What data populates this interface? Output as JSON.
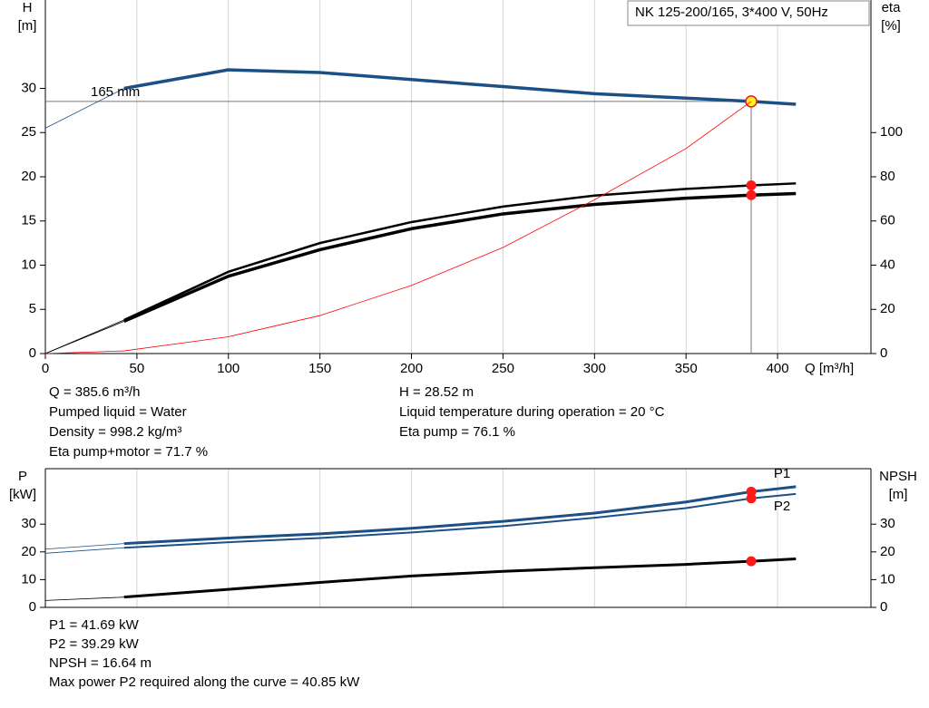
{
  "chart_data": [
    {
      "type": "line",
      "title": "NK 125-200/165, 3*400 V, 50Hz",
      "xlabel": "Q [m³/h]",
      "ylabel": [
        "H",
        "[m]"
      ],
      "y2label": [
        "eta",
        "[%]"
      ],
      "x": [
        0,
        43,
        100,
        150,
        200,
        250,
        300,
        350,
        385.6,
        410
      ],
      "xlim": [
        0,
        451
      ],
      "xticks": [
        0,
        50,
        100,
        150,
        200,
        250,
        300,
        350,
        400
      ],
      "ylim": [
        0,
        40
      ],
      "yticks": [
        0,
        5,
        10,
        15,
        20,
        25,
        30
      ],
      "y2lim": [
        0,
        160
      ],
      "y2ticks": [
        0,
        20,
        40,
        60,
        80,
        100
      ],
      "grid": true,
      "operating_point": {
        "x": 385.6,
        "y": 28.52
      },
      "series": [
        {
          "name": "165 mm",
          "color": "#1c4f86",
          "values": [
            25.5,
            30.0,
            32.1,
            31.8,
            31.0,
            30.2,
            29.4,
            28.9,
            28.52,
            28.2
          ]
        },
        {
          "color": "#000000",
          "axis": "y2",
          "values": [
            0,
            15.2,
            37,
            50,
            59.5,
            66.5,
            71.5,
            74.5,
            76.1,
            77
          ]
        },
        {
          "color": "#000000",
          "axis": "y2",
          "values": [
            0,
            14.6,
            35,
            47,
            56.5,
            63.2,
            67.5,
            70.3,
            71.7,
            72.4
          ]
        },
        {
          "color": "#ff0000",
          "values": [
            0,
            0.3,
            1.9,
            4.3,
            7.7,
            12.0,
            17.4,
            23.2,
            28.52,
            null
          ]
        }
      ],
      "info": [
        [
          "Q = 385.6 m³/h",
          "Pumped liquid = Water",
          "Density = 998.2 kg/m³",
          "Eta pump+motor = 71.7 %"
        ],
        [
          "H = 28.52 m",
          "Liquid temperature during operation = 20 °C",
          "Eta pump = 76.1 %"
        ]
      ]
    },
    {
      "type": "line",
      "ylabel": [
        "P",
        "[kW]"
      ],
      "y2label": [
        "NPSH",
        "[m]"
      ],
      "x": [
        0,
        43,
        100,
        150,
        200,
        250,
        300,
        350,
        385.6,
        410
      ],
      "ylim": [
        0,
        50
      ],
      "yticks": [
        0,
        10,
        20,
        30
      ],
      "y2lim": [
        0,
        50
      ],
      "y2ticks": [
        0,
        10,
        20,
        30
      ],
      "series": [
        {
          "name": "P1",
          "color": "#1c4f86",
          "values": [
            21,
            23,
            25,
            26.5,
            28.5,
            31,
            34,
            38,
            41.69,
            43.5
          ]
        },
        {
          "name": "P2",
          "color": "#1c4f86",
          "values": [
            19.5,
            21.5,
            23.5,
            25,
            27,
            29.3,
            32.3,
            35.8,
            39.29,
            40.9
          ]
        },
        {
          "color": "#000000",
          "axis": "y2",
          "values": [
            2.5,
            3.7,
            6.5,
            9,
            11.3,
            13,
            14.3,
            15.5,
            16.64,
            17.5
          ]
        }
      ],
      "info": [
        [
          "P1 = 41.69 kW",
          "P2 = 39.29 kW",
          "NPSH = 16.64 m",
          "Max power P2 required along the curve = 40.85 kW"
        ]
      ]
    }
  ]
}
